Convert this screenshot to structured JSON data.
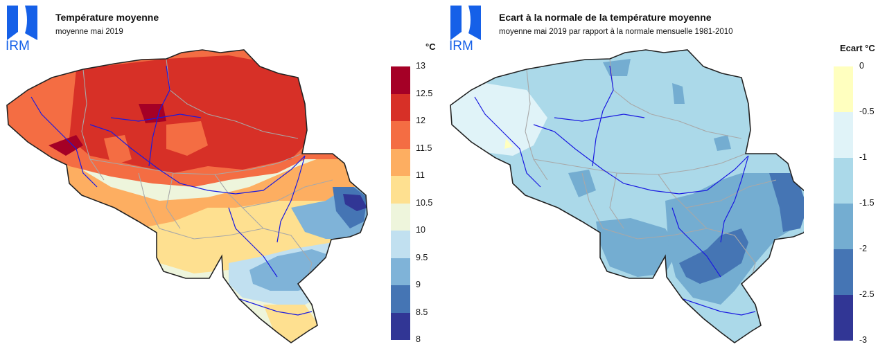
{
  "logo": {
    "text": "IRM",
    "color": "#1560e8"
  },
  "left": {
    "title": "Température moyenne",
    "subtitle": "moyenne mai 2019",
    "unit": "°C",
    "ticks": [
      "13",
      "12.5",
      "12",
      "11.5",
      "11",
      "10.5",
      "10",
      "9.5",
      "9",
      "8.5",
      "8"
    ],
    "colors": [
      "#a50026",
      "#d73027",
      "#f46d43",
      "#fdae61",
      "#fee090",
      "#eef5dc",
      "#c1e0f0",
      "#7fb3d8",
      "#4575b4",
      "#313695"
    ]
  },
  "right": {
    "title": "Ecart à la normale de la température moyenne",
    "subtitle": "moyenne mai 2019 par rapport à la normale mensuelle 1981-2010",
    "unit": "Ecart  °C",
    "ticks": [
      "0",
      "-0.5",
      "-1",
      "-1.5",
      "-2",
      "-2.5",
      "-3"
    ],
    "colors": [
      "#ffffbf",
      "#e0f3f8",
      "#abd9e9",
      "#74add1",
      "#4575b4",
      "#313695"
    ]
  }
}
